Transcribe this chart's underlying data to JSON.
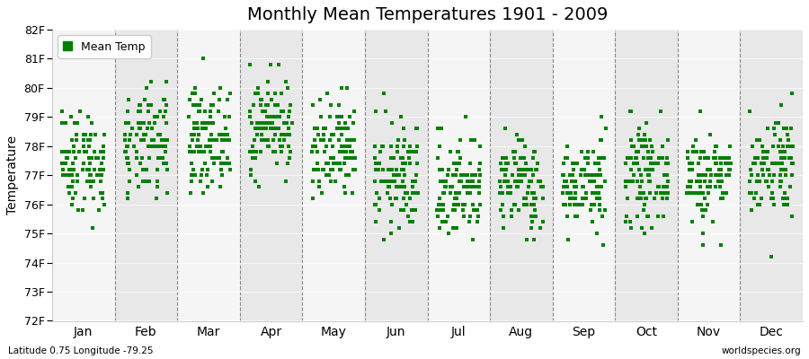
{
  "title": "Monthly Mean Temperatures 1901 - 2009",
  "ylabel": "Temperature",
  "ylim": [
    72,
    82
  ],
  "yticks": [
    72,
    73,
    74,
    75,
    76,
    77,
    78,
    79,
    80,
    81,
    82
  ],
  "ytick_labels": [
    "72F",
    "73F",
    "74F",
    "75F",
    "76F",
    "77F",
    "78F",
    "79F",
    "80F",
    "81F",
    "82F"
  ],
  "months": [
    "Jan",
    "Feb",
    "Mar",
    "Apr",
    "May",
    "Jun",
    "Jul",
    "Aug",
    "Sep",
    "Oct",
    "Nov",
    "Dec"
  ],
  "month_means": [
    77.5,
    78.0,
    78.3,
    78.7,
    77.7,
    76.9,
    76.6,
    76.7,
    76.7,
    77.0,
    77.0,
    77.4
  ],
  "month_stds": [
    0.9,
    0.9,
    0.85,
    0.8,
    0.9,
    0.95,
    0.9,
    0.8,
    0.75,
    0.8,
    0.8,
    0.9
  ],
  "dot_color": "#008000",
  "dot_size": 5,
  "legend_label": "Mean Temp",
  "bottom_left": "Latitude 0.75 Longitude -79.25",
  "bottom_right": "worldspecies.org",
  "n_years": 109,
  "bg_color_light": "#f5f5f5",
  "bg_color_dark": "#e8e8e8",
  "figure_bg": "#ffffff",
  "dashed_color": "#888888",
  "seed": 42
}
